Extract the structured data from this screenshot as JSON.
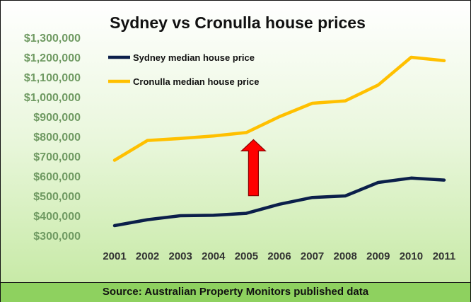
{
  "chart_data": {
    "type": "line",
    "title": "Sydney vs Cronulla house prices",
    "categories": [
      "2001",
      "2002",
      "2003",
      "2004",
      "2005",
      "2006",
      "2007",
      "2008",
      "2009",
      "2010",
      "2011"
    ],
    "y_tick_labels": [
      "$300,000",
      "$400,000",
      "$500,000",
      "$600,000",
      "$700,000",
      "$800,000",
      "$900,000",
      "$1,000,000",
      "$1,100,000",
      "$1,200,000",
      "$1,300,000"
    ],
    "ylim": [
      300000,
      1300000
    ],
    "grid": false,
    "legend_position": "top-left",
    "series": [
      {
        "name": "Sydney median house price",
        "color": "#0b1f4a",
        "values": [
          350000,
          380000,
          400000,
          402000,
          412000,
          458000,
          492000,
          500000,
          568000,
          590000,
          580000
        ]
      },
      {
        "name": "Cronulla median house price",
        "color": "#ffc000",
        "values": [
          680000,
          780000,
          790000,
          803000,
          820000,
          900000,
          968000,
          980000,
          1060000,
          1200000,
          1183000
        ]
      }
    ],
    "annotation": {
      "type": "arrow",
      "color": "#ff0000",
      "category": "2005"
    }
  },
  "footer": {
    "source": "Source: Australian Property Monitors published data"
  }
}
